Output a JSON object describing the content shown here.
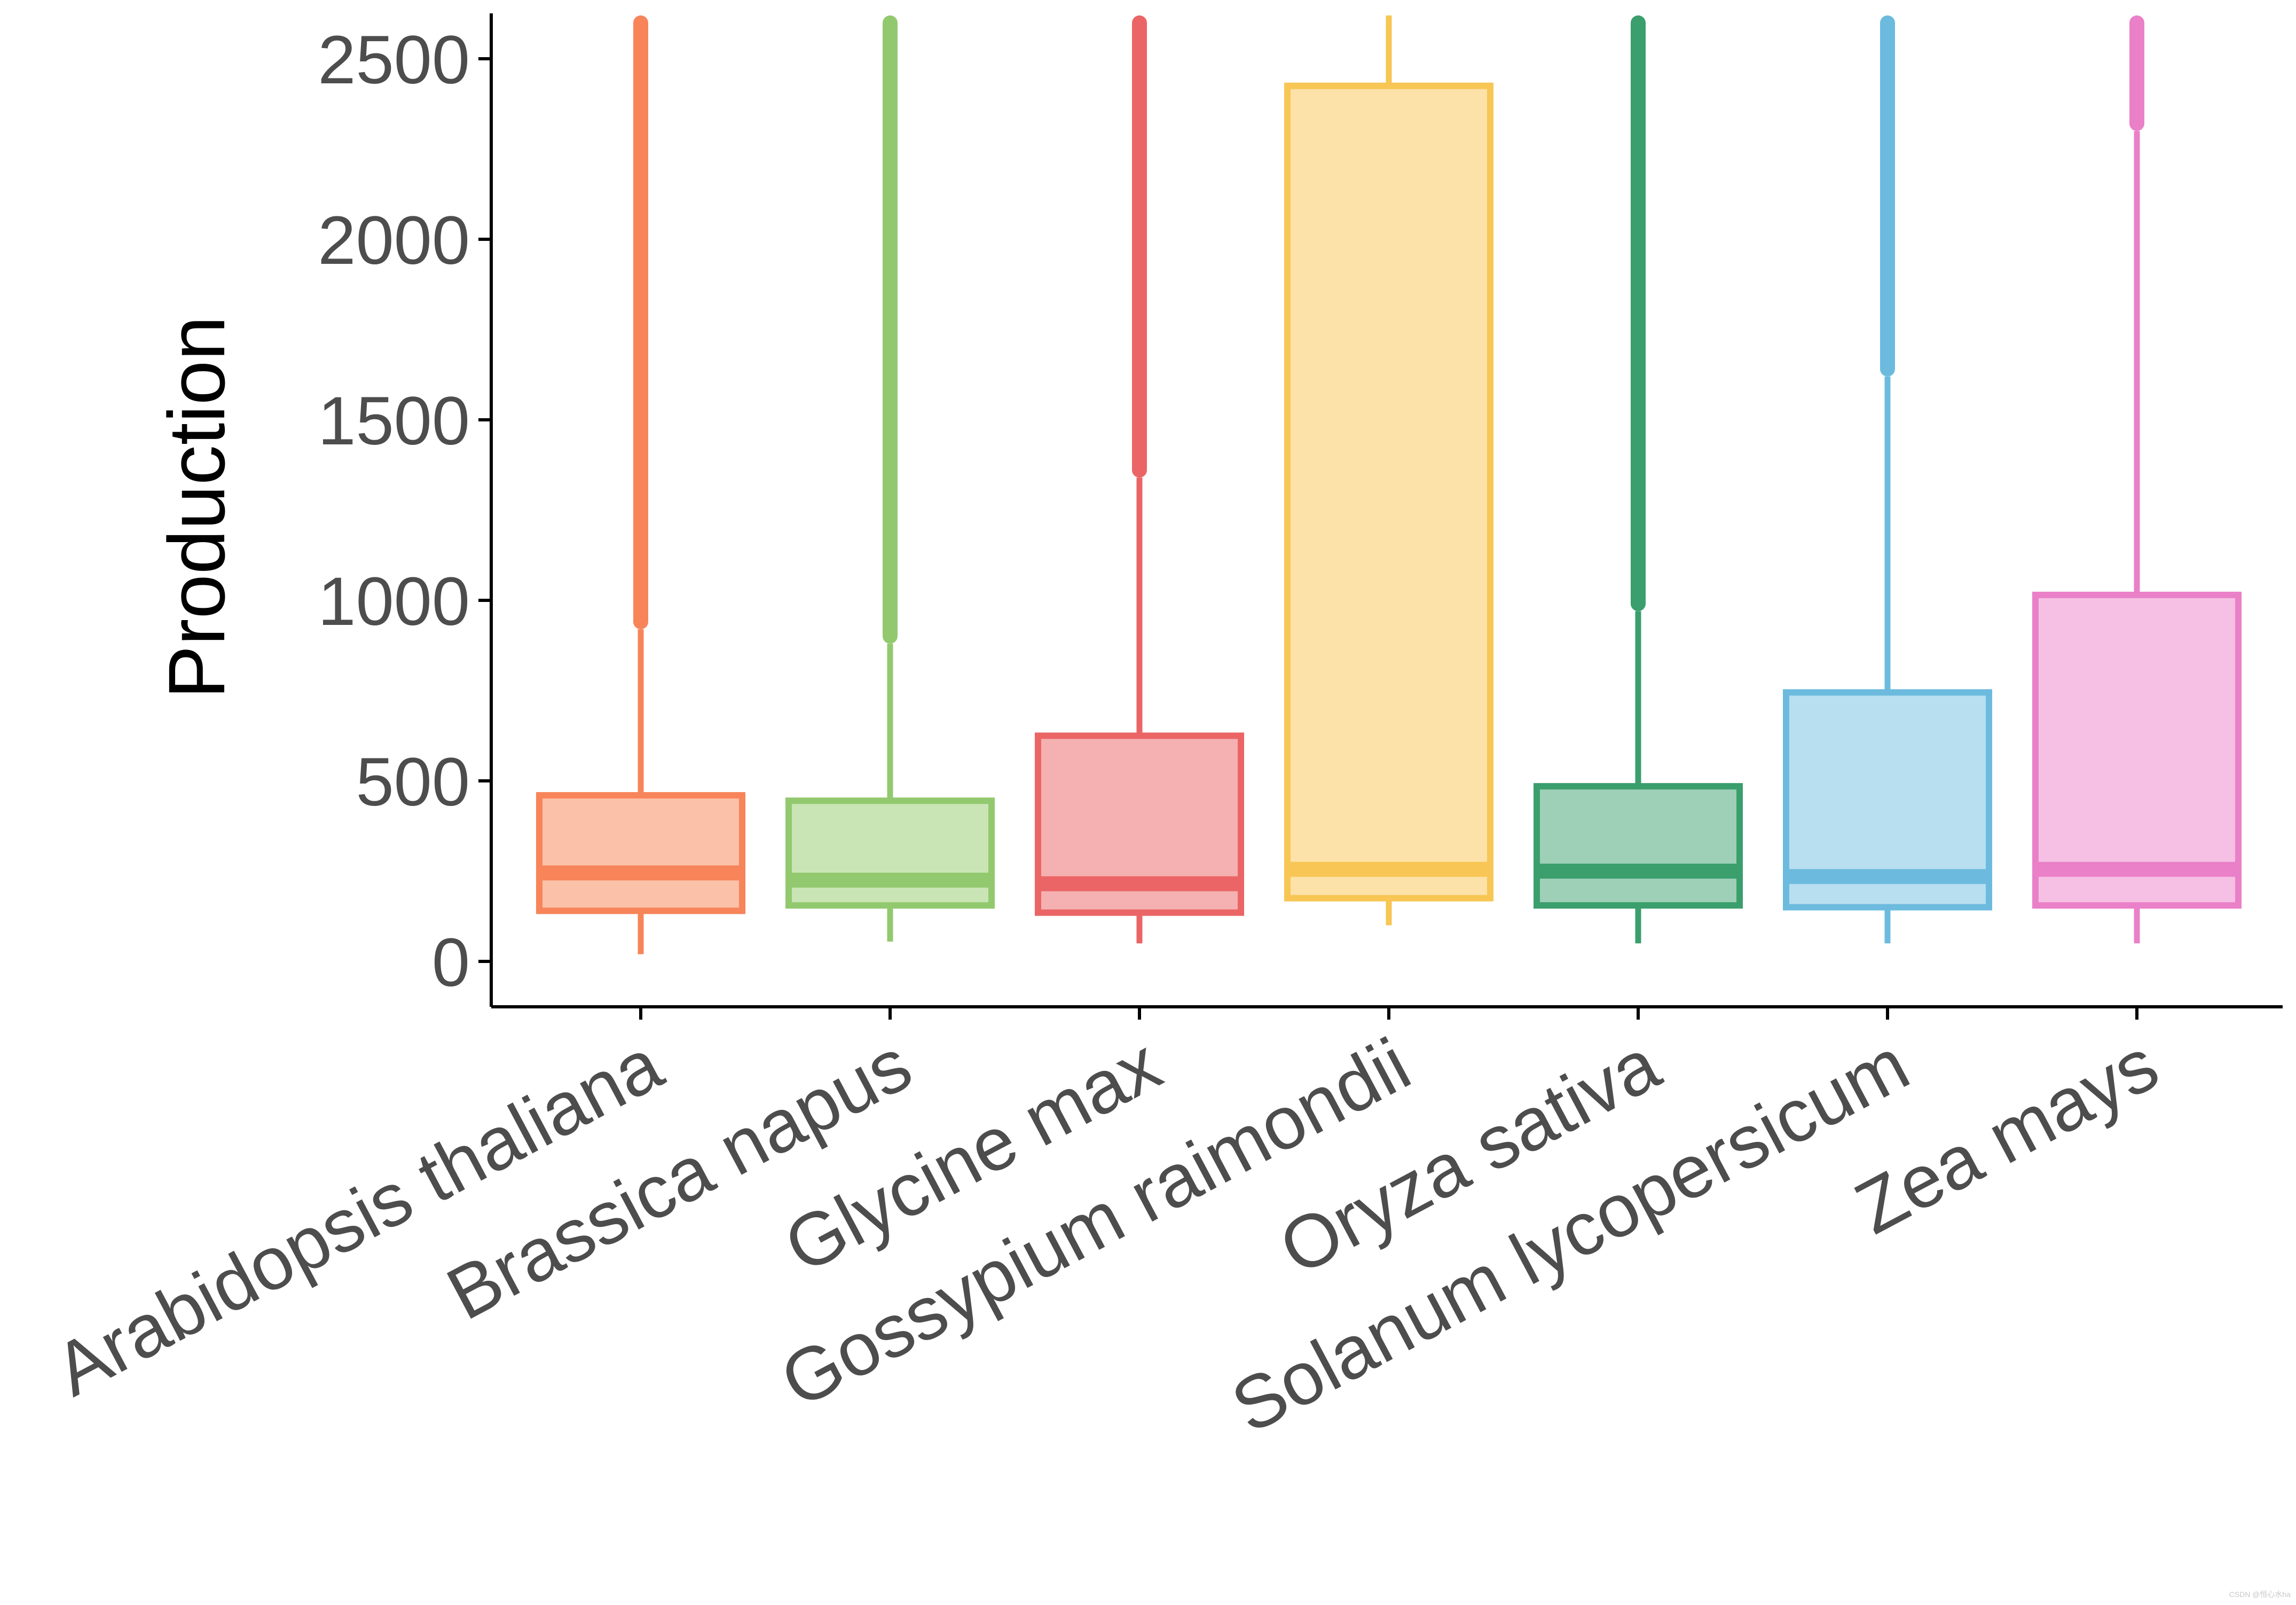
{
  "chart_data": {
    "type": "box",
    "title": "",
    "xlabel": "",
    "ylabel": "Production",
    "ylim": [
      -120,
      2620
    ],
    "yticks": [
      0,
      500,
      1000,
      1500,
      2000,
      2500
    ],
    "ytick_labels": [
      "0",
      "500",
      "1000",
      "1500",
      "2000",
      "2500"
    ],
    "grid": false,
    "legend": "none",
    "categories": [
      "Arabidopsis thaliana",
      "Brassica napus",
      "Glycine max",
      "Gossypium raimondii",
      "Oryza sativa",
      "Solanum lycopersicum",
      "Zea mays"
    ],
    "boxes": [
      {
        "category": "Arabidopsis thaliana",
        "color": "#F8845A",
        "fill": "#FBC1A9",
        "whisker_low": 20,
        "q1": 140,
        "median": 245,
        "q3": 460,
        "whisker_high": 920,
        "outliers_from": 920,
        "outliers_to": 2620
      },
      {
        "category": "Brassica napus",
        "color": "#92C96E",
        "fill": "#C9E5B5",
        "whisker_low": 55,
        "q1": 155,
        "median": 225,
        "q3": 445,
        "whisker_high": 880,
        "outliers_from": 880,
        "outliers_to": 2620
      },
      {
        "category": "Glycine max",
        "color": "#EB6566",
        "fill": "#F5B1B1",
        "whisker_low": 50,
        "q1": 135,
        "median": 215,
        "q3": 625,
        "whisker_high": 1340,
        "outliers_from": 1340,
        "outliers_to": 2620
      },
      {
        "category": "Gossypium raimondii",
        "color": "#F8C654",
        "fill": "#FCE2A8",
        "whisker_low": 100,
        "q1": 175,
        "median": 255,
        "q3": 2425,
        "whisker_high": 2620,
        "outliers_from": null,
        "outliers_to": null
      },
      {
        "category": "Oryza sativa",
        "color": "#3A9E6D",
        "fill": "#9DD0B7",
        "whisker_low": 50,
        "q1": 155,
        "median": 250,
        "q3": 485,
        "whisker_high": 970,
        "outliers_from": 970,
        "outliers_to": 2620
      },
      {
        "category": "Solanum lycopersicum",
        "color": "#6CBBDE",
        "fill": "#B7DFF0",
        "whisker_low": 50,
        "q1": 150,
        "median": 235,
        "q3": 745,
        "whisker_high": 1620,
        "outliers_from": 1620,
        "outliers_to": 2620
      },
      {
        "category": "Zea mays",
        "color": "#EA80C8",
        "fill": "#F5C0E4",
        "whisker_low": 50,
        "q1": 155,
        "median": 255,
        "q3": 1015,
        "whisker_high": 2300,
        "outliers_from": 2300,
        "outliers_to": 2620
      }
    ]
  },
  "watermark": "CSDN @恒心水ha"
}
